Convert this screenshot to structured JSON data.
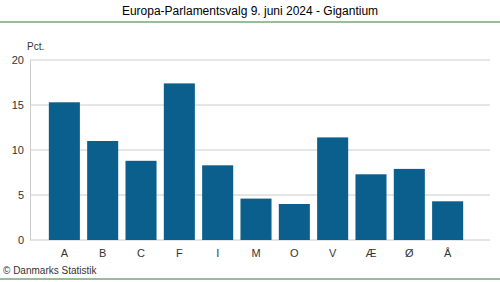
{
  "chart_data": {
    "type": "bar",
    "title": "Europa-Parlamentsvalg 9. juni 2024 - Gigantium",
    "y_label": "Pct.",
    "annotations": [
      "© Danmarks Statistik"
    ],
    "categories": [
      "A",
      "B",
      "C",
      "F",
      "I",
      "M",
      "O",
      "V",
      "Æ",
      "Ø",
      "Å"
    ],
    "values": [
      15.3,
      11.0,
      8.8,
      17.4,
      8.3,
      4.6,
      4.0,
      11.4,
      7.3,
      7.9,
      4.3
    ],
    "color": "#0b5f8c",
    "ylim": [
      0,
      20
    ],
    "yticks": [
      0,
      5,
      10,
      15,
      20
    ],
    "grid": true
  }
}
